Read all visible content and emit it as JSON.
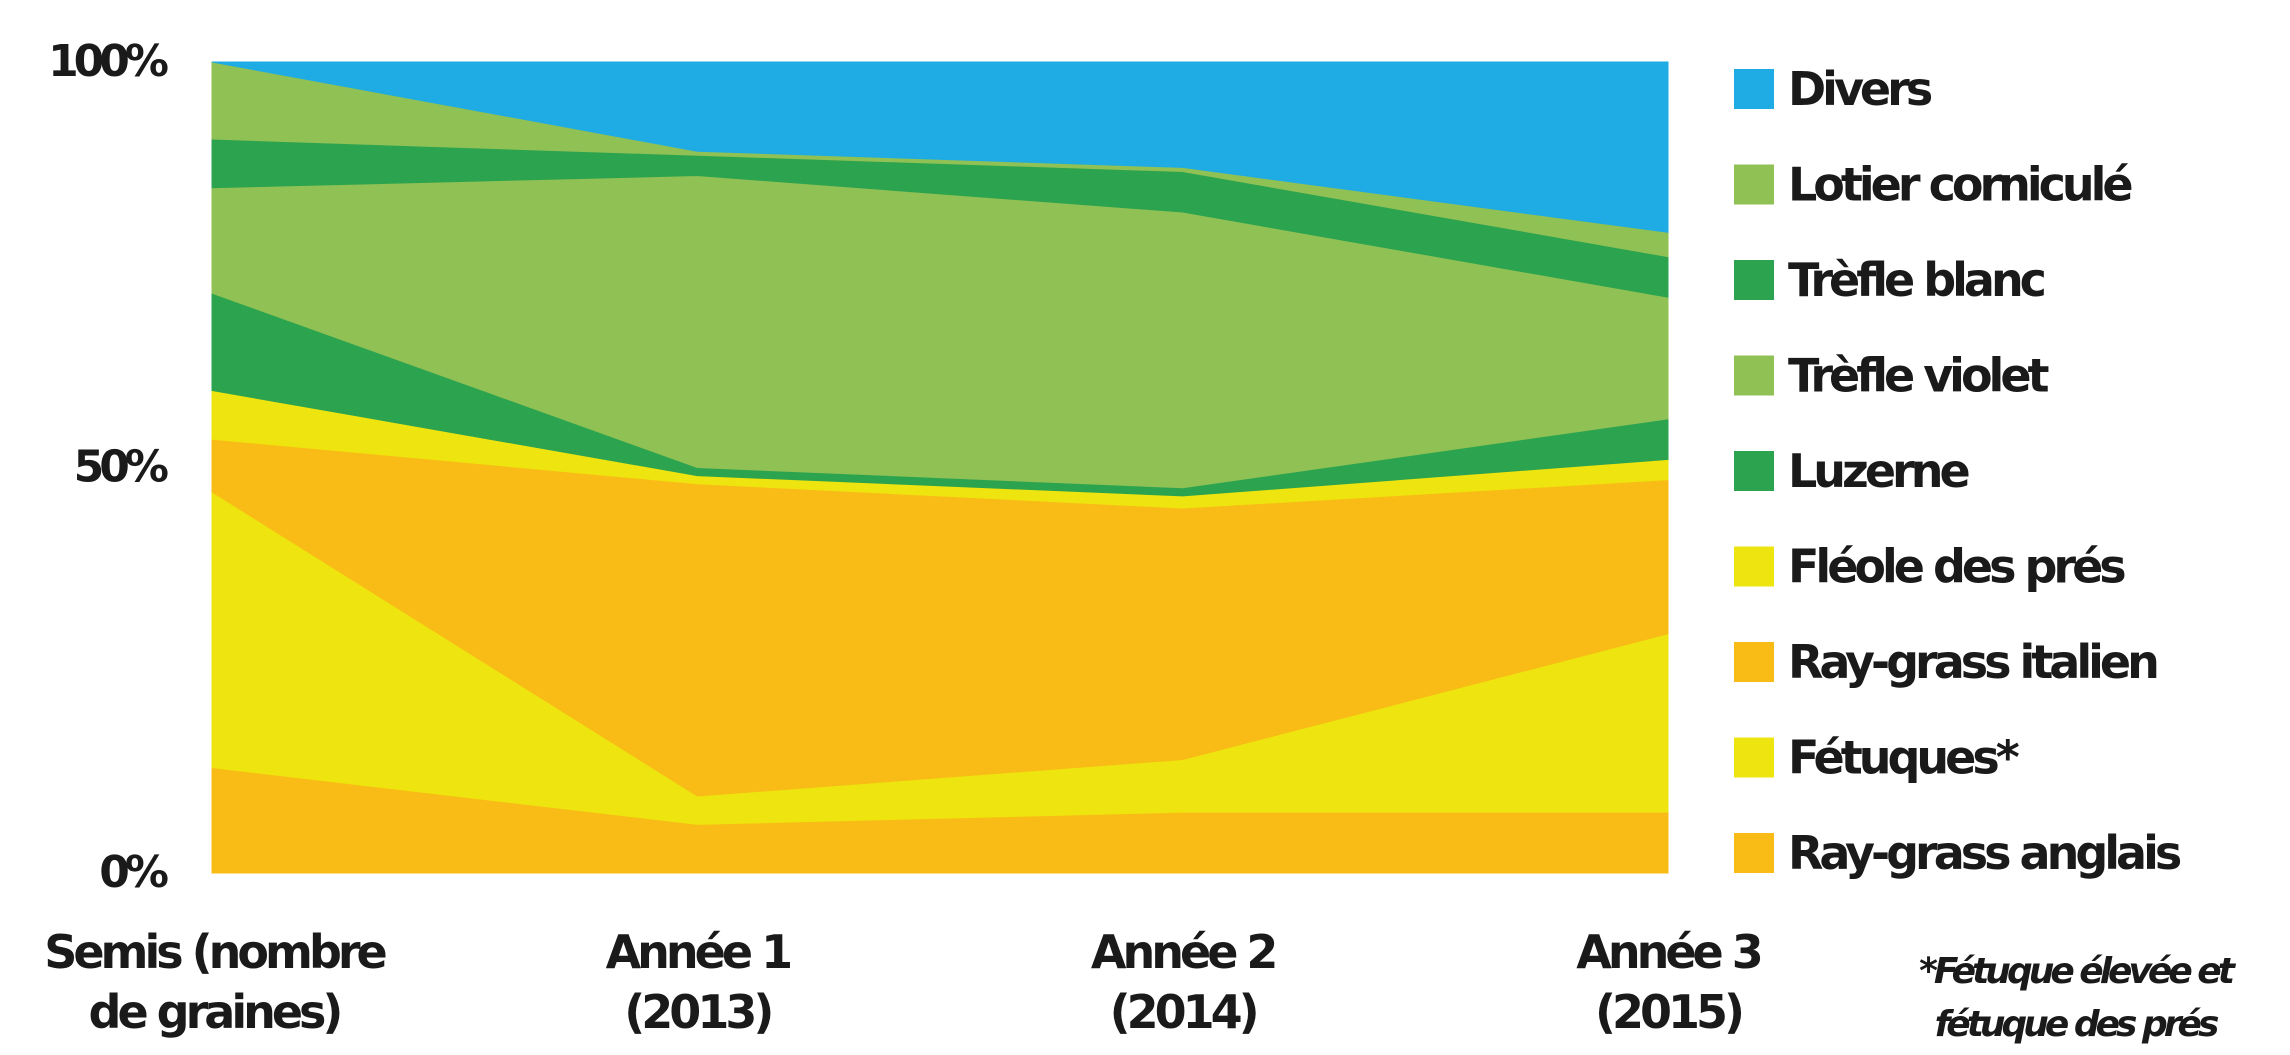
{
  "chart_data": {
    "type": "area",
    "stacked": true,
    "percent": true,
    "x": [
      "Semis (nombre de graines)",
      "Année 1 (2013)",
      "Année 2 (2014)",
      "Année 3 (2015)"
    ],
    "x_tick_lines": [
      [
        "Semis (nombre",
        "de graines)"
      ],
      [
        "Année 1",
        "(2013)"
      ],
      [
        "Année 2",
        "(2014)"
      ],
      [
        "Année 3",
        "(2015)"
      ]
    ],
    "ylim": [
      0,
      100
    ],
    "yticks": [
      {
        "value": 0,
        "label": "0%"
      },
      {
        "value": 50,
        "label": "50%"
      },
      {
        "value": 100,
        "label": "100%"
      }
    ],
    "legend_position": "right",
    "series": [
      {
        "name": "Ray-grass anglais",
        "color": "#f9bb16",
        "values": [
          13,
          6,
          7.5,
          7.5
        ]
      },
      {
        "name": "Fétuques*",
        "color": "#eee40f",
        "values": [
          34,
          3.5,
          6.5,
          22
        ]
      },
      {
        "name": "Ray-grass italien",
        "color": "#f9bb16",
        "values": [
          6.5,
          38.5,
          31,
          19
        ]
      },
      {
        "name": "Fléole des prés",
        "color": "#eee40f",
        "values": [
          6,
          1,
          1.5,
          2.5
        ]
      },
      {
        "name": "Luzerne",
        "color": "#2ca34f",
        "values": [
          12,
          1,
          1,
          5
        ]
      },
      {
        "name": "Trèfle violet",
        "color": "#8fc154",
        "values": [
          13,
          36,
          34,
          15
        ]
      },
      {
        "name": "Trèfle blanc",
        "color": "#2ca34f",
        "values": [
          6,
          2.5,
          5,
          5
        ]
      },
      {
        "name": "Lotier corniculé",
        "color": "#8fc154",
        "values": [
          9.5,
          0.5,
          0.5,
          3
        ]
      },
      {
        "name": "Divers",
        "color": "#1fabe3",
        "values": [
          0,
          11,
          13,
          21
        ]
      }
    ],
    "legend_order": [
      "Divers",
      "Lotier corniculé",
      "Trèfle blanc",
      "Trèfle violet",
      "Luzerne",
      "Fléole des prés",
      "Ray-grass italien",
      "Fétuques*",
      "Ray-grass anglais"
    ],
    "annotation": [
      "*Fétuque élevée et",
      "fétuque des prés"
    ]
  }
}
